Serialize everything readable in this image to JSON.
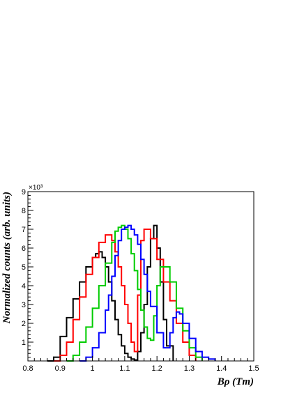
{
  "chart_data": {
    "type": "line",
    "xlabel": "Bρ (Tm)",
    "ylabel": "Normalized counts (arb. units)",
    "y_multiplier_label": "×10³",
    "xlim": [
      0.8,
      1.5
    ],
    "ylim": [
      0,
      9000
    ],
    "xticks": [
      0.8,
      0.9,
      1.0,
      1.1,
      1.2,
      1.3,
      1.4,
      1.5
    ],
    "xtick_labels": [
      "0.8",
      "0.9",
      "1",
      "1.1",
      "1.2",
      "1.3",
      "1.4",
      "1.5"
    ],
    "yticks": [
      1000,
      2000,
      3000,
      4000,
      5000,
      6000,
      7000,
      8000,
      9000
    ],
    "ytick_labels": [
      "1",
      "2",
      "3",
      "4",
      "5",
      "6",
      "7",
      "8",
      "9"
    ],
    "grid": false,
    "legend": "none",
    "series": [
      {
        "color": "#000000",
        "x": [
          0.86,
          0.88,
          0.9,
          0.92,
          0.94,
          0.96,
          0.98,
          1.0,
          1.01,
          1.02,
          1.03,
          1.04,
          1.05,
          1.06,
          1.07,
          1.08,
          1.09,
          1.1,
          1.11,
          1.12,
          1.13,
          1.14,
          1.15,
          1.16,
          1.17,
          1.18,
          1.19,
          1.2,
          1.21,
          1.22,
          1.23,
          1.25
        ],
        "y": [
          0,
          200,
          1300,
          2300,
          3300,
          4200,
          5000,
          5500,
          5700,
          5800,
          5500,
          5000,
          4200,
          3200,
          2200,
          1400,
          800,
          400,
          200,
          100,
          50,
          500,
          1500,
          3000,
          5000,
          6500,
          7200,
          6000,
          4200,
          2200,
          800,
          0
        ]
      },
      {
        "color": "#ff0000",
        "x": [
          0.88,
          0.9,
          0.92,
          0.94,
          0.96,
          0.98,
          1.0,
          1.02,
          1.04,
          1.05,
          1.06,
          1.07,
          1.08,
          1.09,
          1.1,
          1.11,
          1.12,
          1.13,
          1.14,
          1.15,
          1.16,
          1.18,
          1.2,
          1.22,
          1.24,
          1.26,
          1.28,
          1.3,
          1.32
        ],
        "y": [
          0,
          300,
          1000,
          2200,
          3400,
          4600,
          5500,
          6300,
          6700,
          6700,
          6400,
          5800,
          5000,
          4000,
          3000,
          2000,
          1000,
          500,
          3500,
          6400,
          7000,
          6500,
          5400,
          4200,
          3200,
          2000,
          1000,
          300,
          0
        ]
      },
      {
        "color": "#00cc00",
        "x": [
          0.92,
          0.94,
          0.96,
          0.98,
          1.0,
          1.02,
          1.04,
          1.06,
          1.07,
          1.08,
          1.09,
          1.1,
          1.11,
          1.12,
          1.13,
          1.14,
          1.15,
          1.16,
          1.17,
          1.18,
          1.19,
          1.2,
          1.21,
          1.22,
          1.24,
          1.26,
          1.28,
          1.3,
          1.32,
          1.34
        ],
        "y": [
          0,
          300,
          1000,
          1800,
          2800,
          4000,
          5200,
          6300,
          6900,
          7100,
          7200,
          7000,
          6500,
          5700,
          4800,
          3800,
          2700,
          1800,
          1200,
          1100,
          2400,
          4000,
          5000,
          5000,
          4200,
          2800,
          1600,
          700,
          200,
          0
        ]
      },
      {
        "color": "#0000ff",
        "x": [
          0.96,
          0.98,
          1.0,
          1.02,
          1.04,
          1.05,
          1.06,
          1.07,
          1.08,
          1.09,
          1.1,
          1.11,
          1.12,
          1.13,
          1.14,
          1.15,
          1.16,
          1.17,
          1.18,
          1.2,
          1.22,
          1.24,
          1.25,
          1.26,
          1.27,
          1.28,
          1.3,
          1.32,
          1.34,
          1.36,
          1.38
        ],
        "y": [
          0,
          200,
          700,
          1500,
          2700,
          3500,
          4500,
          5600,
          6400,
          7000,
          7100,
          7200,
          7000,
          6700,
          6200,
          5400,
          4600,
          3700,
          2900,
          1500,
          700,
          1500,
          2300,
          2600,
          2500,
          2000,
          1200,
          500,
          200,
          100,
          0
        ]
      }
    ]
  }
}
